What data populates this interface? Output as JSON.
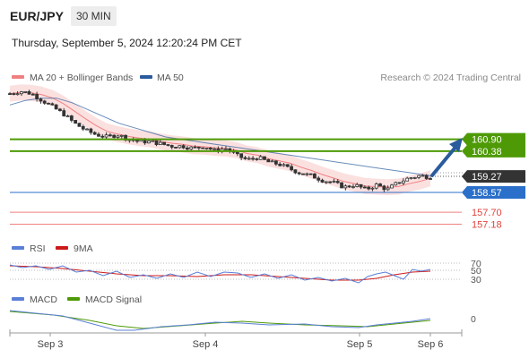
{
  "header": {
    "symbol": "EUR/JPY",
    "interval": "30 MIN",
    "datetime": "Thursday, September 5, 2024 12:20:24 PM CET"
  },
  "legend": {
    "main": [
      {
        "name": "MA 20 + Bollinger Bands",
        "color": "#f08080"
      },
      {
        "name": "MA 50",
        "color": "#2a5b9c"
      }
    ],
    "rsi": [
      {
        "name": "RSI",
        "color": "#5b7fd6"
      },
      {
        "name": "9MA",
        "color": "#cc1a1a"
      }
    ],
    "macd": [
      {
        "name": "MACD",
        "color": "#5b7fd6"
      },
      {
        "name": "MACD Signal",
        "color": "#4e9a06"
      }
    ],
    "credit": "Research © 2024 Trading Central"
  },
  "chart_data": {
    "type": "line",
    "x_ticks": [
      "Sep 3",
      "Sep 4",
      "Sep 5",
      "Sep 6"
    ],
    "price_labels": [
      {
        "value": 160.9,
        "text": "160.90",
        "style": "green-box"
      },
      {
        "value": 160.38,
        "text": "160.38",
        "style": "green-box"
      },
      {
        "value": 159.27,
        "text": "159.27",
        "style": "dark-box"
      },
      {
        "value": 158.57,
        "text": "158.57",
        "style": "blue-box"
      },
      {
        "value": 157.7,
        "text": "157.70",
        "style": "red-text"
      },
      {
        "value": 157.18,
        "text": "157.18",
        "style": "red-text"
      }
    ],
    "levels": [
      {
        "value": 160.9,
        "kind": "resistance",
        "color": "#4e9a06"
      },
      {
        "value": 160.38,
        "kind": "resistance",
        "color": "#4e9a06"
      },
      {
        "value": 158.57,
        "kind": "pivot",
        "color": "#2a6fc9"
      },
      {
        "value": 157.7,
        "kind": "support",
        "color": "#f08080"
      },
      {
        "value": 157.18,
        "kind": "support",
        "color": "#f08080"
      }
    ],
    "last_price": 159.27,
    "price_path": [
      162.9,
      163.0,
      162.9,
      162.6,
      162.3,
      162.0,
      161.6,
      161.3,
      161.1,
      161.0,
      161.1,
      160.9,
      160.8,
      160.8,
      160.7,
      160.6,
      160.6,
      160.5,
      160.6,
      160.4,
      160.5,
      160.2,
      160.0,
      160.1,
      159.9,
      159.8,
      159.6,
      159.4,
      159.3,
      159.1,
      159.0,
      158.8,
      158.9,
      158.7,
      158.9,
      158.7,
      159.0,
      159.2,
      159.3,
      159.25
    ],
    "ma50_path": [
      162.4,
      162.6,
      162.7,
      162.7,
      162.5,
      162.2,
      161.9,
      161.6,
      161.4,
      161.2,
      161.0,
      160.9,
      160.8,
      160.7,
      160.6,
      160.5,
      160.4,
      160.3,
      160.2,
      160.1,
      160.0,
      159.9,
      159.8,
      159.7,
      159.6,
      159.5,
      159.4,
      159.3
    ],
    "projection": {
      "from": 159.27,
      "to": 160.9
    },
    "rsi_levels": [
      "70",
      "50",
      "30"
    ],
    "macd_levels": [
      "0"
    ]
  }
}
